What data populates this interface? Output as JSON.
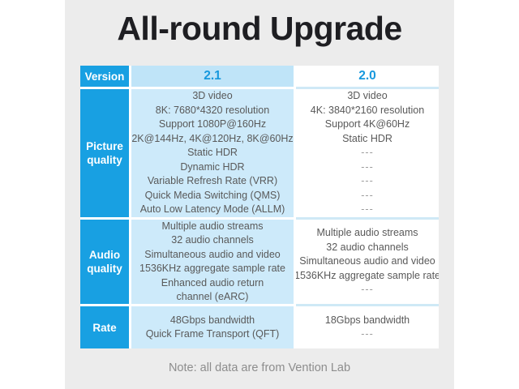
{
  "title": "All-round Upgrade",
  "note": "Note: all data are from Vention Lab",
  "colors": {
    "brand_blue": "#18a0e2",
    "header_light_blue": "#bfe4f8",
    "body_light_blue": "#cdeafa",
    "separator_light_blue": "#cfe9f6",
    "accent_text_blue": "#1798dd",
    "background_gray": "#ececec"
  },
  "chart_data": {
    "type": "table",
    "title": "All-round Upgrade",
    "note": "Note: all data are from Vention Lab",
    "columns": [
      "Version",
      "2.1",
      "2.0"
    ],
    "header": {
      "version_label": "Version",
      "col_2_1": "2.1",
      "col_2_0": "2.0"
    },
    "rows": [
      {
        "label": "Picture quality",
        "hdmi_2_1": [
          "3D video",
          "8K: 7680*4320 resolution",
          "Support 1080P@160Hz",
          "2K@144Hz, 4K@120Hz, 8K@60Hz",
          "Static HDR",
          "Dynamic HDR",
          "Variable Refresh Rate (VRR)",
          "Quick Media Switching (QMS)",
          "Auto Low Latency Mode (ALLM)"
        ],
        "hdmi_2_0": [
          "3D video",
          "4K: 3840*2160 resolution",
          "Support 4K@60Hz",
          "Static HDR",
          "---",
          "---",
          "---",
          "---",
          "---"
        ]
      },
      {
        "label": "Audio quality",
        "hdmi_2_1": [
          "Multiple audio streams",
          "32 audio channels",
          "Simultaneous audio and video",
          "1536KHz aggregate sample rate",
          "Enhanced audio return",
          "channel (eARC)"
        ],
        "hdmi_2_0": [
          "Multiple audio streams",
          "32 audio channels",
          "Simultaneous audio and video",
          "1536KHz aggregate sample rate",
          "---"
        ]
      },
      {
        "label": "Rate",
        "hdmi_2_1": [
          "48Gbps bandwidth",
          "Quick Frame Transport (QFT)"
        ],
        "hdmi_2_0": [
          "18Gbps bandwidth",
          "---"
        ]
      }
    ]
  }
}
